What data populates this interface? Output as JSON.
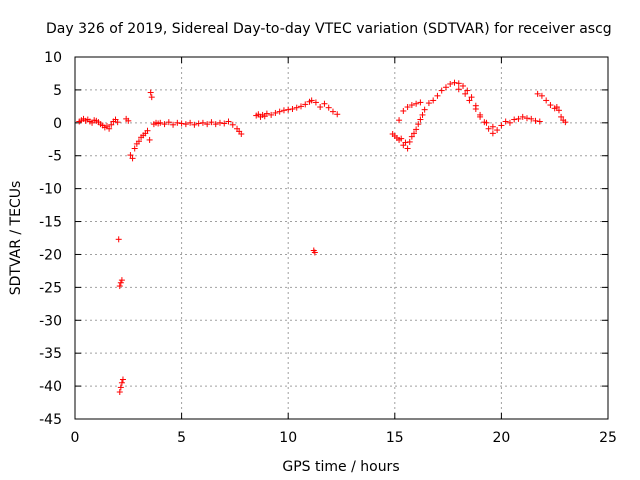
{
  "chart_data": {
    "type": "scatter",
    "title": "Day 326 of 2019, Sidereal Day-to-day VTEC variation (SDTVAR) for receiver ascg",
    "xlabel": "GPS time / hours",
    "ylabel": "SDTVAR / TECUs",
    "xlim": [
      0,
      25
    ],
    "ylim": [
      -45,
      10
    ],
    "xticks": [
      0,
      5,
      10,
      15,
      20,
      25
    ],
    "yticks": [
      10,
      5,
      0,
      -5,
      -10,
      -15,
      -20,
      -25,
      -30,
      -35,
      -40,
      -45
    ],
    "xtick_labels": [
      "0",
      "5",
      "10",
      "15",
      "20",
      "25"
    ],
    "ytick_labels": [
      "10",
      "5",
      "0",
      "-5",
      "-10",
      "-15",
      "-20",
      "-25",
      "-30",
      "-35",
      "-40",
      "-45"
    ],
    "grid": true,
    "marker": "plus",
    "series": [
      {
        "name": "SDTVAR",
        "color": "#ff0000",
        "points": [
          [
            0.2,
            0.2
          ],
          [
            0.3,
            0.4
          ],
          [
            0.4,
            0.6
          ],
          [
            0.5,
            0.3
          ],
          [
            0.6,
            0.5
          ],
          [
            0.7,
            0.2
          ],
          [
            0.8,
            0.0
          ],
          [
            0.9,
            0.4
          ],
          [
            1.0,
            0.3
          ],
          [
            1.1,
            0.1
          ],
          [
            1.2,
            -0.2
          ],
          [
            1.3,
            -0.4
          ],
          [
            1.4,
            -0.7
          ],
          [
            1.5,
            -0.5
          ],
          [
            1.6,
            -0.9
          ],
          [
            1.7,
            -0.3
          ],
          [
            1.8,
            0.2
          ],
          [
            1.9,
            0.5
          ],
          [
            2.0,
            0.1
          ],
          [
            2.05,
            -17.7
          ],
          [
            2.1,
            -24.8
          ],
          [
            2.15,
            -24.3
          ],
          [
            2.2,
            -23.9
          ],
          [
            2.1,
            -40.9
          ],
          [
            2.15,
            -40.2
          ],
          [
            2.2,
            -39.5
          ],
          [
            2.25,
            -39.0
          ],
          [
            2.4,
            0.6
          ],
          [
            2.5,
            0.3
          ],
          [
            2.6,
            -4.9
          ],
          [
            2.7,
            -5.4
          ],
          [
            2.8,
            -3.9
          ],
          [
            2.9,
            -3.2
          ],
          [
            3.0,
            -2.8
          ],
          [
            3.1,
            -2.2
          ],
          [
            3.2,
            -1.9
          ],
          [
            3.3,
            -1.6
          ],
          [
            3.4,
            -1.2
          ],
          [
            3.5,
            -2.6
          ],
          [
            3.55,
            4.6
          ],
          [
            3.6,
            3.9
          ],
          [
            3.7,
            -0.2
          ],
          [
            3.8,
            0.0
          ],
          [
            3.9,
            -0.1
          ],
          [
            4.0,
            0.0
          ],
          [
            4.2,
            -0.2
          ],
          [
            4.4,
            0.1
          ],
          [
            4.6,
            -0.3
          ],
          [
            4.8,
            0.0
          ],
          [
            5.0,
            -0.1
          ],
          [
            5.2,
            -0.2
          ],
          [
            5.4,
            0.0
          ],
          [
            5.6,
            -0.3
          ],
          [
            5.8,
            -0.1
          ],
          [
            6.0,
            0.0
          ],
          [
            6.2,
            -0.2
          ],
          [
            6.4,
            0.1
          ],
          [
            6.6,
            -0.2
          ],
          [
            6.8,
            0.0
          ],
          [
            7.0,
            -0.1
          ],
          [
            7.2,
            0.2
          ],
          [
            7.4,
            -0.3
          ],
          [
            7.6,
            -0.9
          ],
          [
            7.7,
            -1.3
          ],
          [
            7.8,
            -1.7
          ],
          [
            8.5,
            1.1
          ],
          [
            8.6,
            1.3
          ],
          [
            8.7,
            0.9
          ],
          [
            8.8,
            1.2
          ],
          [
            8.9,
            1.0
          ],
          [
            9.0,
            1.4
          ],
          [
            9.2,
            1.2
          ],
          [
            9.4,
            1.5
          ],
          [
            9.6,
            1.7
          ],
          [
            9.8,
            1.9
          ],
          [
            10.0,
            2.0
          ],
          [
            10.2,
            2.1
          ],
          [
            10.4,
            2.3
          ],
          [
            10.6,
            2.5
          ],
          [
            10.8,
            2.8
          ],
          [
            11.0,
            3.2
          ],
          [
            11.1,
            3.4
          ],
          [
            11.2,
            -19.4
          ],
          [
            11.25,
            -19.7
          ],
          [
            11.3,
            3.1
          ],
          [
            11.5,
            2.4
          ],
          [
            11.7,
            2.9
          ],
          [
            11.9,
            2.3
          ],
          [
            12.1,
            1.7
          ],
          [
            12.3,
            1.3
          ],
          [
            14.9,
            -1.7
          ],
          [
            15.0,
            -2.0
          ],
          [
            15.1,
            -2.3
          ],
          [
            15.2,
            -2.6
          ],
          [
            15.3,
            -2.4
          ],
          [
            15.4,
            -3.4
          ],
          [
            15.5,
            -3.0
          ],
          [
            15.6,
            -3.9
          ],
          [
            15.7,
            -2.9
          ],
          [
            15.8,
            -2.1
          ],
          [
            15.9,
            -1.6
          ],
          [
            16.0,
            -1.0
          ],
          [
            16.1,
            -0.2
          ],
          [
            16.2,
            0.5
          ],
          [
            16.3,
            1.2
          ],
          [
            16.4,
            2.0
          ],
          [
            15.2,
            0.4
          ],
          [
            15.4,
            1.8
          ],
          [
            15.6,
            2.4
          ],
          [
            15.8,
            2.7
          ],
          [
            16.0,
            2.9
          ],
          [
            16.2,
            3.1
          ],
          [
            16.6,
            3.0
          ],
          [
            16.8,
            3.4
          ],
          [
            17.0,
            4.1
          ],
          [
            17.2,
            4.9
          ],
          [
            17.4,
            5.4
          ],
          [
            17.6,
            5.9
          ],
          [
            17.8,
            6.1
          ],
          [
            18.0,
            6.0
          ],
          [
            18.2,
            5.6
          ],
          [
            18.4,
            4.9
          ],
          [
            18.6,
            3.9
          ],
          [
            18.8,
            2.6
          ],
          [
            19.0,
            1.2
          ],
          [
            19.2,
            0.1
          ],
          [
            19.4,
            -0.9
          ],
          [
            19.6,
            -1.6
          ],
          [
            19.8,
            -1.1
          ],
          [
            18.0,
            5.1
          ],
          [
            18.3,
            4.4
          ],
          [
            18.5,
            3.4
          ],
          [
            18.8,
            2.1
          ],
          [
            19.0,
            0.9
          ],
          [
            19.3,
            0.0
          ],
          [
            19.6,
            -0.6
          ],
          [
            20.0,
            -0.4
          ],
          [
            20.2,
            0.2
          ],
          [
            20.4,
            0.0
          ],
          [
            20.6,
            0.5
          ],
          [
            20.8,
            0.6
          ],
          [
            21.0,
            0.9
          ],
          [
            21.2,
            0.7
          ],
          [
            21.4,
            0.6
          ],
          [
            21.6,
            0.3
          ],
          [
            21.8,
            0.2
          ],
          [
            21.7,
            4.4
          ],
          [
            21.9,
            4.1
          ],
          [
            22.1,
            3.4
          ],
          [
            22.3,
            2.7
          ],
          [
            22.5,
            2.2
          ],
          [
            22.6,
            2.4
          ],
          [
            22.7,
            1.9
          ],
          [
            22.8,
            0.9
          ],
          [
            22.9,
            0.4
          ],
          [
            23.0,
            0.1
          ]
        ]
      }
    ]
  }
}
